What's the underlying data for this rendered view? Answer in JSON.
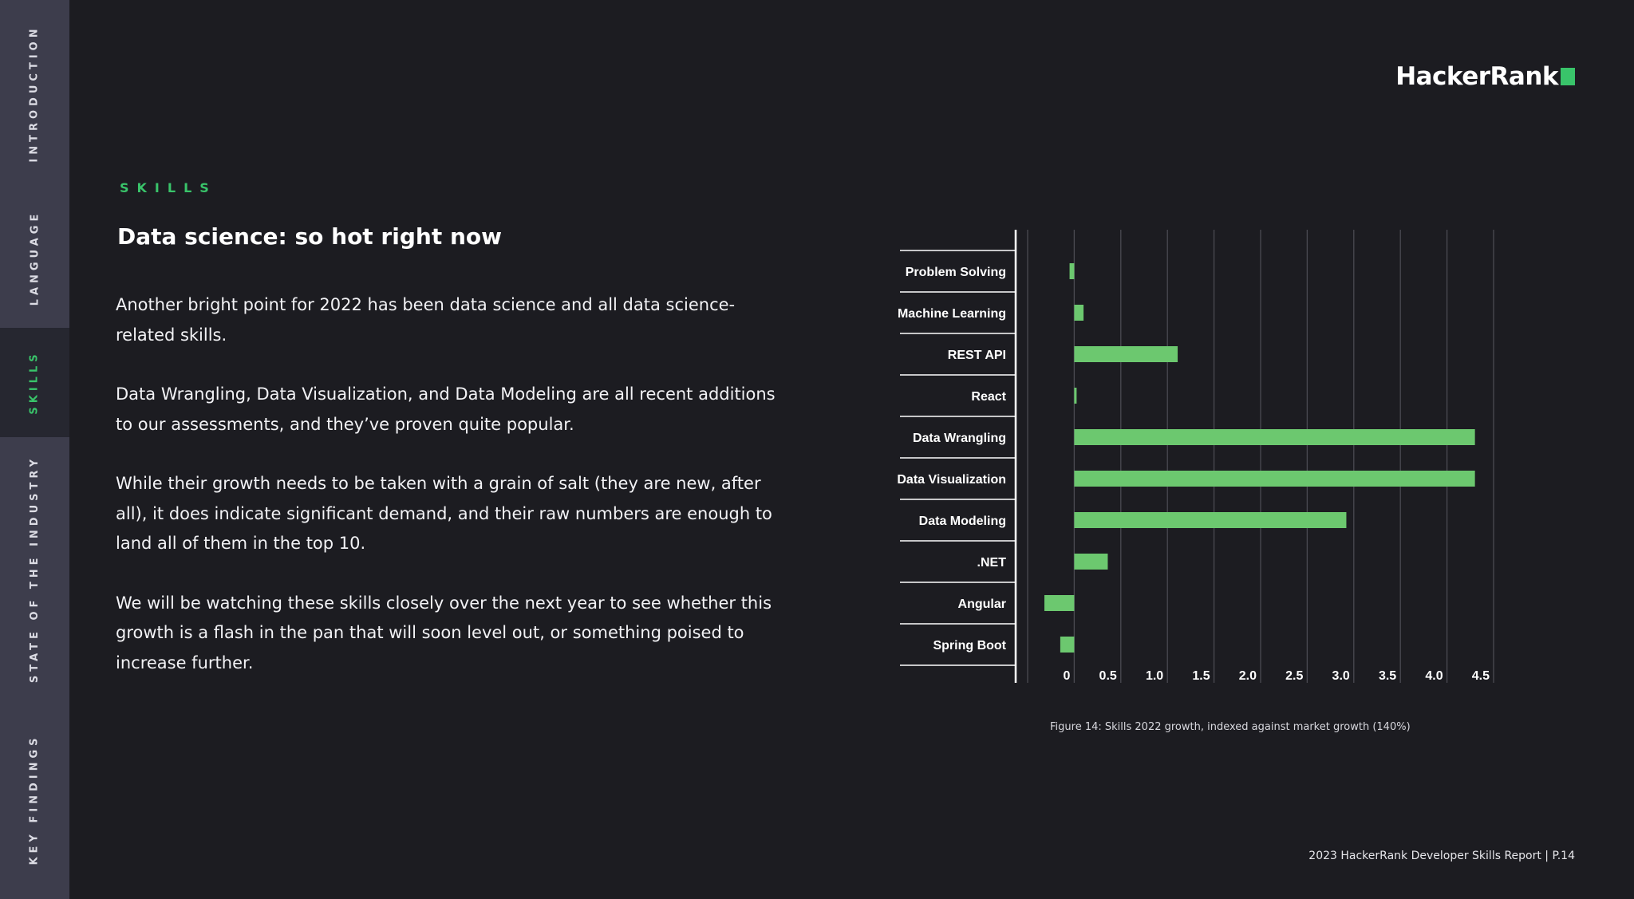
{
  "sidebar": {
    "items": [
      {
        "label": "INTRODUCTION",
        "active": false
      },
      {
        "label": "LANGUAGE",
        "active": false
      },
      {
        "label": "SKILLS",
        "active": true
      },
      {
        "label": "STATE OF THE INDUSTRY",
        "active": false
      },
      {
        "label": "KEY FINDINGS",
        "active": false
      }
    ]
  },
  "logo": {
    "text": "HackerRank"
  },
  "section": {
    "eyebrow": "SKILLS",
    "title": "Data science: so hot right now"
  },
  "paragraphs": [
    "Another bright point for 2022 has been data science and all data science-related skills.",
    "Data Wrangling, Data Visualization, and Data Modeling are all recent additions to our assessments, and they’ve proven quite popular.",
    "While their growth needs to be taken with a grain of salt (they are new, after all), it does indicate significant demand, and their raw numbers are enough to land all of them in the top 10.",
    "We will be watching these skills closely over the next year to see whether this growth is a flash in the pan that will soon level out, or something poised to increase further."
  ],
  "chart_data": {
    "type": "bar",
    "orientation": "horizontal",
    "categories": [
      "Problem Solving",
      "Machine Learning",
      "REST API",
      "React",
      "Data Wrangling",
      "Data Visualization",
      "Data Modeling",
      ".NET",
      "Angular",
      "Spring Boot"
    ],
    "values": [
      -0.05,
      0.1,
      1.11,
      0.02,
      4.3,
      4.3,
      2.92,
      0.36,
      -0.32,
      -0.15
    ],
    "xlim": [
      -0.5,
      4.5
    ],
    "xticks": [
      "0",
      "0.5",
      "1.0",
      "1.5",
      "2.0",
      "2.5",
      "3.0",
      "3.5",
      "4.0",
      "4.5"
    ],
    "grid": true,
    "bar_color": "#6cc86f"
  },
  "caption": "Figure 14: Skills 2022 growth, indexed against market growth (140%)",
  "footer": "2023 HackerRank Developer Skills Report | P.14",
  "colors": {
    "accent": "#39c46a",
    "background": "#1c1c21",
    "sidebar": "#3d3d4c"
  }
}
